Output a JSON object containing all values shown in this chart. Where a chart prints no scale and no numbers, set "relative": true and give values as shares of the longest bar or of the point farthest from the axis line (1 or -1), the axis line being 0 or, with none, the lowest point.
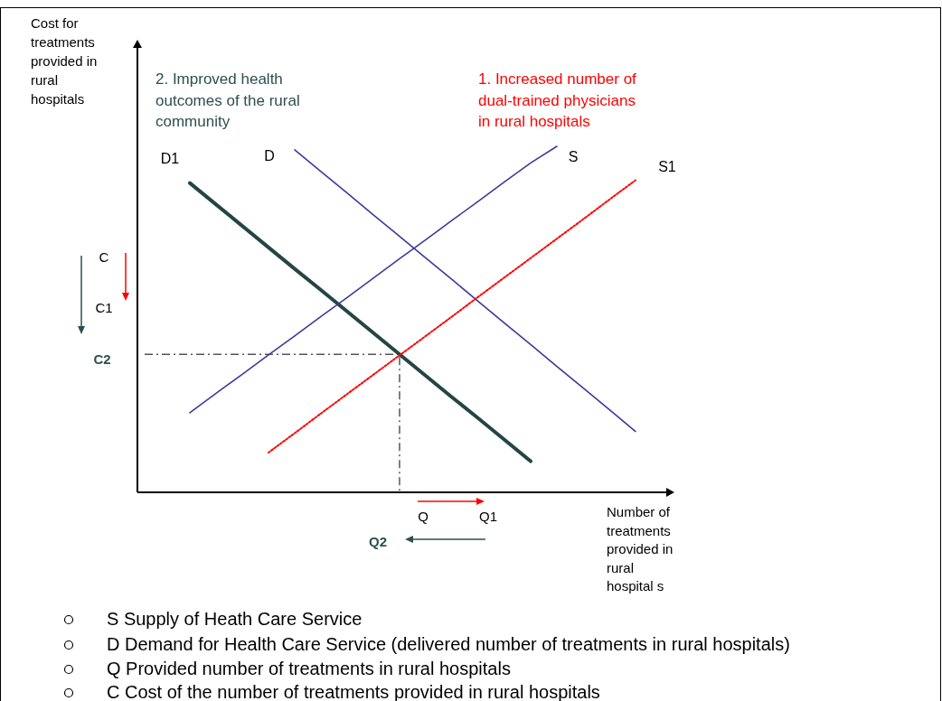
{
  "chart_data": {
    "type": "line",
    "relative": true,
    "xlabel": "Number of treatments provided in rural hospital s",
    "ylabel": "Cost for treatments provided in rural hospitals",
    "categories": [
      null,
      null,
      null,
      null,
      null,
      null,
      null,
      null,
      null,
      null,
      null,
      null,
      null,
      null,
      null,
      null,
      null,
      null,
      null,
      null,
      null
    ],
    "series": [
      {
        "name": "D1",
        "color": "#244545",
        "values": [
          null,
          null,
          0.894,
          0.832,
          0.77,
          0.708,
          0.646,
          0.585,
          0.523,
          0.461,
          0.399,
          0.337,
          0.275,
          0.214,
          0.152,
          0.09,
          null,
          null,
          null,
          null,
          null
        ]
      },
      {
        "name": "D",
        "color": "#3b3b9a",
        "values": [
          null,
          null,
          null,
          null,
          null,
          null,
          0.99,
          0.927,
          0.865,
          0.802,
          0.74,
          0.677,
          0.615,
          0.552,
          0.489,
          0.427,
          0.364,
          0.302,
          0.239,
          0.176,
          null
        ]
      },
      {
        "name": "S",
        "color": "#3b3b9a",
        "values": [
          null,
          null,
          0.23,
          0.286,
          0.341,
          0.397,
          0.452,
          0.508,
          0.563,
          0.619,
          0.675,
          0.73,
          0.786,
          0.841,
          0.897,
          0.952,
          1.0,
          null,
          null,
          null,
          null
        ]
      },
      {
        "name": "S1",
        "color": "#ff0000",
        "line_style": "dotted",
        "values": [
          null,
          null,
          null,
          null,
          null,
          0.115,
          0.171,
          0.228,
          0.284,
          0.34,
          0.396,
          0.452,
          0.508,
          0.565,
          0.621,
          0.677,
          0.733,
          0.789,
          0.846,
          0.902,
          null
        ]
      }
    ],
    "ref_lines": [
      {
        "axis": "y",
        "value": 0.399,
        "label": "C2",
        "color": "#000000",
        "line_style": "dashed"
      }
    ],
    "annotations": [
      "2. Improved health outcomes of the rural community",
      "1. Increased number of dual-trained physicians in rural hospitals",
      "C",
      "C1",
      "Q",
      "Q1",
      "Q2",
      "S Supply of Heath Care Service",
      "D Demand for Health Care Service (delivered number of treatments in rural hospitals)",
      "Q Provided number of treatments in rural hospitals",
      "C Cost of the number of treatments provided in rural hospitals"
    ]
  }
}
